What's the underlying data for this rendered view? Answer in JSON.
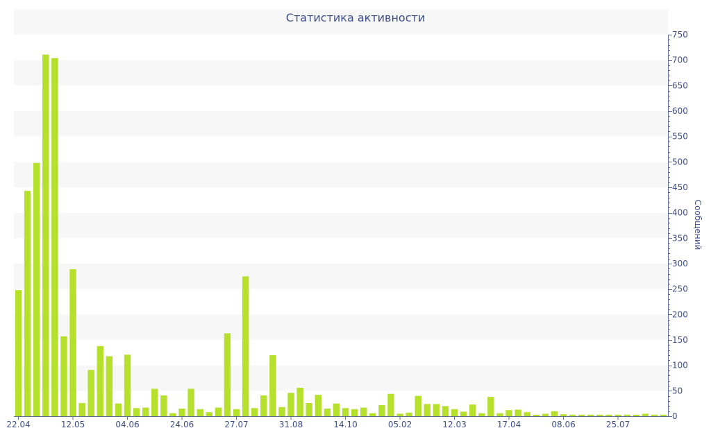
{
  "chart_data": {
    "type": "bar",
    "title": "Статистика активности",
    "ylabel": "Сообщений",
    "xlabel": "",
    "ylim": [
      0,
      750
    ],
    "yticks": [
      0,
      50,
      100,
      150,
      200,
      250,
      300,
      350,
      400,
      450,
      500,
      550,
      600,
      650,
      700,
      750
    ],
    "xtick_labels": [
      "22.04",
      "12.05",
      "04.06",
      "24.06",
      "27.07",
      "31.08",
      "14.10",
      "05.02",
      "12.03",
      "17.04",
      "08.06",
      "25.07"
    ],
    "xtick_bar_index": [
      0,
      6,
      12,
      18,
      24,
      30,
      36,
      42,
      48,
      54,
      60,
      66
    ],
    "values": [
      248,
      443,
      498,
      711,
      704,
      157,
      289,
      26,
      91,
      138,
      118,
      25,
      121,
      16,
      17,
      54,
      41,
      6,
      15,
      54,
      14,
      8,
      17,
      163,
      14,
      275,
      16,
      41,
      120,
      18,
      46,
      56,
      26,
      42,
      15,
      25,
      16,
      14,
      17,
      6,
      22,
      44,
      5,
      7,
      40,
      24,
      24,
      20,
      14,
      9,
      23,
      6,
      38,
      6,
      12,
      13,
      8,
      3,
      5,
      10,
      4,
      3,
      3,
      3,
      3,
      3,
      3,
      3,
      3,
      5,
      3,
      3
    ],
    "bar_color": "#b5e02b",
    "band_color": "#f7f7f7",
    "text_color": "#3e4e8a",
    "grid": "horizontal bands",
    "y_axis_side": "right"
  }
}
